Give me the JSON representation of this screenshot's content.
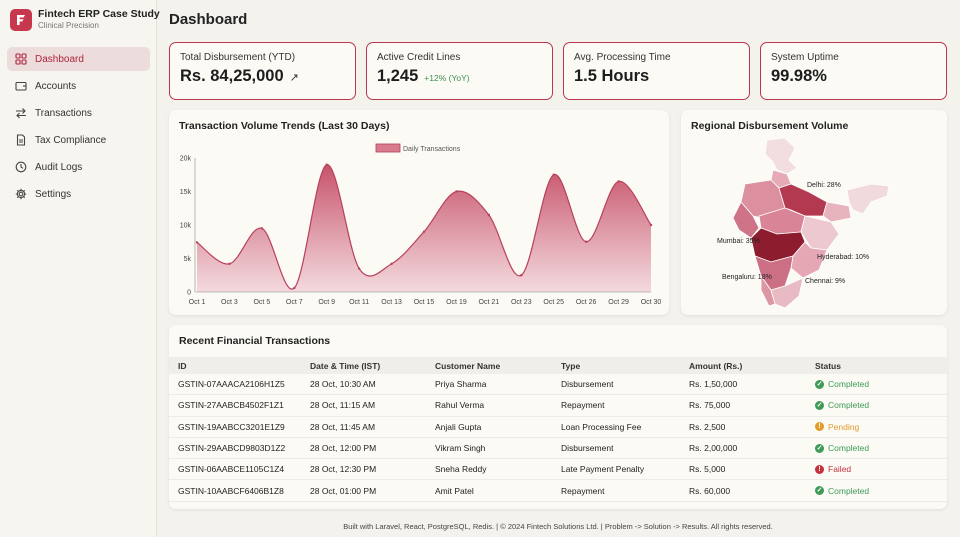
{
  "brand": {
    "title": "Fintech ERP Case Study",
    "subtitle": "Clinical Precision"
  },
  "sidebar": {
    "items": [
      {
        "label": "Dashboard",
        "icon": "grid-icon",
        "active": true
      },
      {
        "label": "Accounts",
        "icon": "wallet-icon",
        "active": false
      },
      {
        "label": "Transactions",
        "icon": "arrows-swap-icon",
        "active": false
      },
      {
        "label": "Tax Compliance",
        "icon": "document-icon",
        "active": false
      },
      {
        "label": "Audit Logs",
        "icon": "clock-icon",
        "active": false
      },
      {
        "label": "Settings",
        "icon": "gear-icon",
        "active": false
      }
    ]
  },
  "page": {
    "title": "Dashboard"
  },
  "kpis": [
    {
      "label": "Total Disbursement (YTD)",
      "value": "Rs. 84,25,000",
      "extra": "",
      "arrow": "↗"
    },
    {
      "label": "Active Credit Lines",
      "value": "1,245",
      "extra": "+12% (YoY)",
      "arrow": ""
    },
    {
      "label": "Avg. Processing Time",
      "value": "1.5 Hours",
      "extra": "",
      "arrow": ""
    },
    {
      "label": "System Uptime",
      "value": "99.98%",
      "extra": "",
      "arrow": ""
    }
  ],
  "trend_card": {
    "title": "Transaction Volume Trends (Last 30 Days)"
  },
  "chart_data": {
    "type": "area",
    "title": "Transaction Volume Trends (Last 30 Days)",
    "series": [
      {
        "name": "Daily Transactions",
        "x": [
          "Oct 1",
          "Oct 3",
          "Oct 5",
          "Oct 7",
          "Oct 9",
          "Oct 11",
          "Oct 13",
          "Oct 15",
          "Oct 19",
          "Oct 21",
          "Oct 23",
          "Oct 25",
          "Oct 26",
          "Oct 29",
          "Oct 30"
        ],
        "values": [
          7400,
          4200,
          9500,
          600,
          19000,
          3500,
          4200,
          9000,
          15000,
          11500,
          2500,
          17500,
          7500,
          16500,
          10000
        ]
      }
    ],
    "x_ticks": [
      "Oct 1",
      "Oct 3",
      "Oct 5",
      "Oct 7",
      "Oct 9",
      "Oct 11",
      "Oct 13",
      "Oct 15",
      "Oct 19",
      "Oct 21",
      "Oct 23",
      "Oct 25",
      "Oct 26",
      "Oct 29",
      "Oct 30"
    ],
    "y_ticks": [
      "0",
      "5k",
      "10k",
      "15k",
      "20k"
    ],
    "ylim": [
      0,
      20000
    ],
    "grid": false,
    "legend": "top-center",
    "colors": {
      "line": "#b8405a",
      "fill_top": "#c9556c",
      "fill_bottom": "#f1d3d9"
    }
  },
  "map_card": {
    "title": "Regional Disbursement Volume",
    "labels": [
      {
        "text": "Delhi: 28%"
      },
      {
        "text": "Mumbai: 35%"
      },
      {
        "text": "Hyderabad: 10%"
      },
      {
        "text": "Bengaluru: 18%"
      },
      {
        "text": "Chennai: 9%"
      }
    ]
  },
  "transactions": {
    "title": "Recent Financial Transactions",
    "columns": [
      "ID",
      "Date & Time (IST)",
      "Customer Name",
      "Type",
      "Amount (Rs.)",
      "Status"
    ],
    "rows": [
      {
        "id": "GSTIN-07AAACA2106H1Z5",
        "date": "28 Oct, 10:30 AM",
        "customer": "Priya Sharma",
        "type": "Disbursement",
        "amount": "Rs. 1,50,000",
        "status": "Completed"
      },
      {
        "id": "GSTIN-27AABCB4502F1Z1",
        "date": "28 Oct, 11:15 AM",
        "customer": "Rahul Verma",
        "type": "Repayment",
        "amount": "Rs. 75,000",
        "status": "Completed"
      },
      {
        "id": "GSTIN-19AABCC3201E1Z9",
        "date": "28 Oct, 11:45 AM",
        "customer": "Anjali Gupta",
        "type": "Loan Processing Fee",
        "amount": "Rs. 2,500",
        "status": "Pending"
      },
      {
        "id": "GSTIN-29AABCD9803D1Z2",
        "date": "28 Oct, 12:00 PM",
        "customer": "Vikram Singh",
        "type": "Disbursement",
        "amount": "Rs. 2,00,000",
        "status": "Completed"
      },
      {
        "id": "GSTIN-06AABCE1105C1Z4",
        "date": "28 Oct, 12:30 PM",
        "customer": "Sneha Reddy",
        "type": "Late Payment Penalty",
        "amount": "Rs. 5,000",
        "status": "Failed"
      },
      {
        "id": "GSTIN-10AABCF6406B1Z8",
        "date": "28 Oct, 01:00 PM",
        "customer": "Amit Patel",
        "type": "Repayment",
        "amount": "Rs. 60,000",
        "status": "Completed"
      }
    ],
    "status_colors": {
      "Completed": "#3f9b56",
      "Pending": "#e39b2d",
      "Failed": "#c6313d"
    },
    "status_icons": {
      "Completed": "check-circle-icon",
      "Pending": "clock-circle-icon",
      "Failed": "alert-circle-icon"
    }
  },
  "footer": {
    "text": "Built with Laravel, React, PostgreSQL, Redis. | © 2024 Fintech Solutions Ltd. | Problem -> Solution -> Results. All rights reserved."
  }
}
